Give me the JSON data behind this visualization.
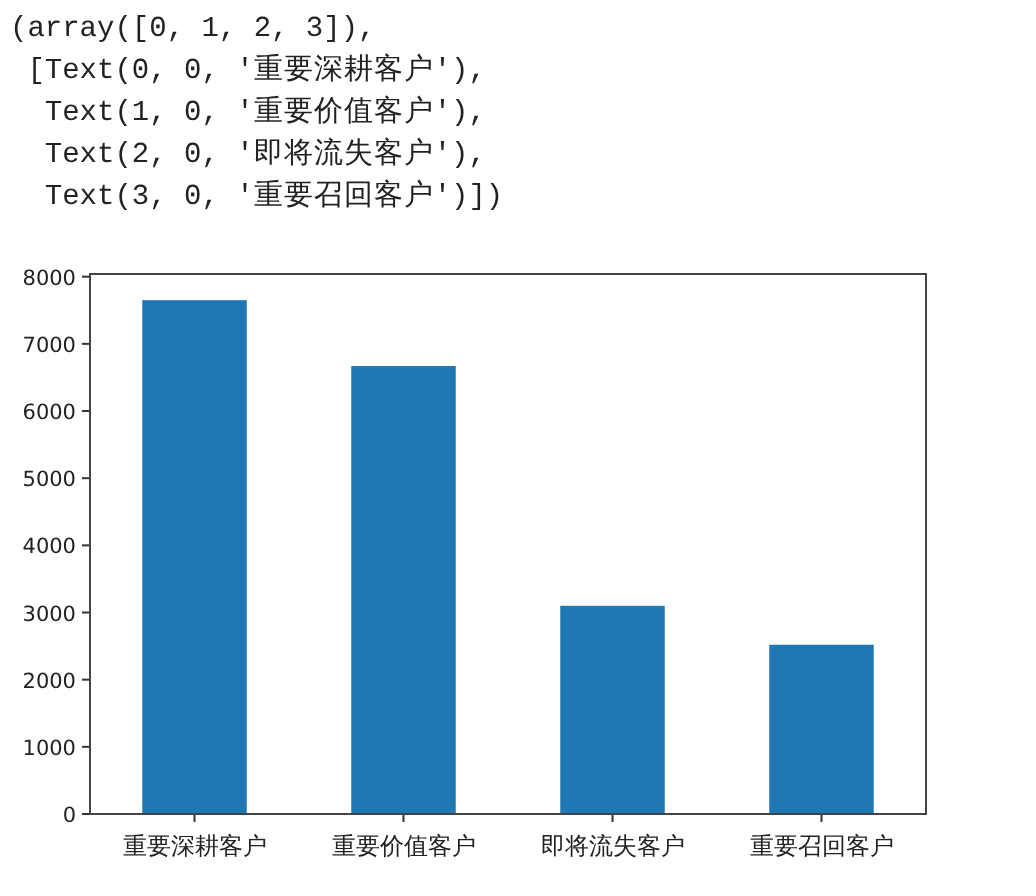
{
  "chart_data": {
    "type": "bar",
    "categories": [
      "重要深耕客户",
      "重要价值客户",
      "即将流失客户",
      "重要召回客户"
    ],
    "values": [
      7650,
      6670,
      3100,
      2520
    ],
    "color": "#1f77b4",
    "ylim": [
      0,
      8040
    ],
    "yticks": [
      0,
      1000,
      2000,
      3000,
      4000,
      5000,
      6000,
      7000,
      8000
    ],
    "grid": false,
    "annotations": [
      "(array([0, 1, 2, 3]),",
      " [Text(0, 0, '重要深耕客户'),",
      "  Text(1, 0, '重要价值客户'),",
      "  Text(2, 0, '即将流失客户'),",
      "  Text(3, 0, '重要召回客户')])"
    ]
  }
}
